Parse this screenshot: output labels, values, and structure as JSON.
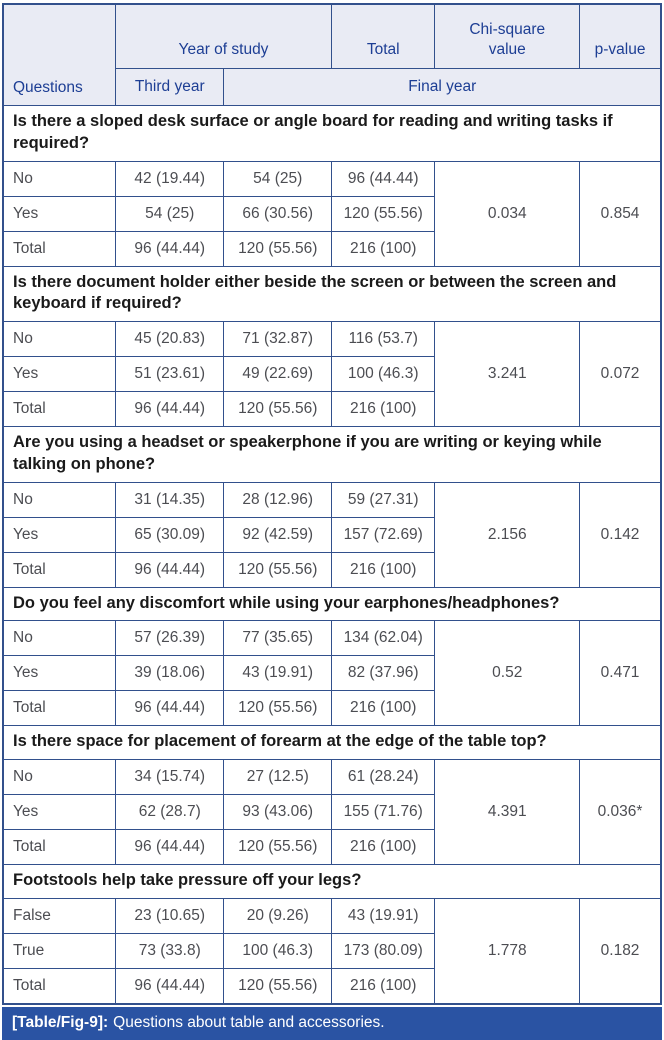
{
  "colors": {
    "border": "#32508c",
    "header_bg": "#e9ebf4",
    "header_fg": "#1d3e94",
    "question_fg": "#1a1a1a",
    "data_fg": "#4c4d52",
    "caption_bg": "#2a53a3",
    "caption_fg": "#ffffff"
  },
  "header": {
    "questions_label": "Questions",
    "year_of_study": "Year of study",
    "third_year": "Third year",
    "final_year": "Final year",
    "total": "Total",
    "chi_square": "Chi-square value",
    "p_value": "p-value"
  },
  "sections": [
    {
      "question": "Is there a sloped desk surface or angle board for reading and writing tasks if required?",
      "rows": [
        {
          "label": "No",
          "third": "42 (19.44)",
          "final": "54 (25)",
          "total": "96 (44.44)"
        },
        {
          "label": "Yes",
          "third": "54 (25)",
          "final": "66 (30.56)",
          "total": "120 (55.56)"
        },
        {
          "label": "Total",
          "third": "96 (44.44)",
          "final": "120 (55.56)",
          "total": "216 (100)"
        }
      ],
      "chi_square": "0.034",
      "p_value": "0.854"
    },
    {
      "question": "Is there document holder either beside the screen or between the screen and keyboard if required?",
      "rows": [
        {
          "label": "No",
          "third": "45 (20.83)",
          "final": "71 (32.87)",
          "total": "116 (53.7)"
        },
        {
          "label": "Yes",
          "third": "51 (23.61)",
          "final": "49 (22.69)",
          "total": "100 (46.3)"
        },
        {
          "label": "Total",
          "third": "96 (44.44)",
          "final": "120 (55.56)",
          "total": "216 (100)"
        }
      ],
      "chi_square": "3.241",
      "p_value": "0.072"
    },
    {
      "question": "Are you using a headset or speakerphone if you are writing or keying while talking on phone?",
      "rows": [
        {
          "label": "No",
          "third": "31 (14.35)",
          "final": "28 (12.96)",
          "total": "59 (27.31)"
        },
        {
          "label": "Yes",
          "third": "65 (30.09)",
          "final": "92 (42.59)",
          "total": "157 (72.69)"
        },
        {
          "label": "Total",
          "third": "96 (44.44)",
          "final": "120 (55.56)",
          "total": "216 (100)"
        }
      ],
      "chi_square": "2.156",
      "p_value": "0.142"
    },
    {
      "question": "Do you feel any discomfort while using your earphones/headphones?",
      "rows": [
        {
          "label": "No",
          "third": "57 (26.39)",
          "final": "77 (35.65)",
          "total": "134 (62.04)"
        },
        {
          "label": "Yes",
          "third": "39 (18.06)",
          "final": "43 (19.91)",
          "total": "82 (37.96)"
        },
        {
          "label": "Total",
          "third": "96 (44.44)",
          "final": "120 (55.56)",
          "total": "216 (100)"
        }
      ],
      "chi_square": "0.52",
      "p_value": "0.471"
    },
    {
      "question": "Is there space for placement of forearm at the edge of the table top?",
      "rows": [
        {
          "label": "No",
          "third": "34 (15.74)",
          "final": "27 (12.5)",
          "total": "61 (28.24)"
        },
        {
          "label": "Yes",
          "third": "62 (28.7)",
          "final": "93 (43.06)",
          "total": "155 (71.76)"
        },
        {
          "label": "Total",
          "third": "96 (44.44)",
          "final": "120 (55.56)",
          "total": "216 (100)"
        }
      ],
      "chi_square": "4.391",
      "p_value": "0.036*"
    },
    {
      "question": "Footstools help take pressure off your legs?",
      "rows": [
        {
          "label": "False",
          "third": "23 (10.65)",
          "final": "20 (9.26)",
          "total": "43 (19.91)"
        },
        {
          "label": "True",
          "third": "73 (33.8)",
          "final": "100 (46.3)",
          "total": "173 (80.09)"
        },
        {
          "label": "Total",
          "third": "96 (44.44)",
          "final": "120 (55.56)",
          "total": "216 (100)"
        }
      ],
      "chi_square": "1.778",
      "p_value": "0.182"
    }
  ],
  "caption": {
    "tag": "[Table/Fig-9]:",
    "text": "Questions about table and accessories."
  }
}
